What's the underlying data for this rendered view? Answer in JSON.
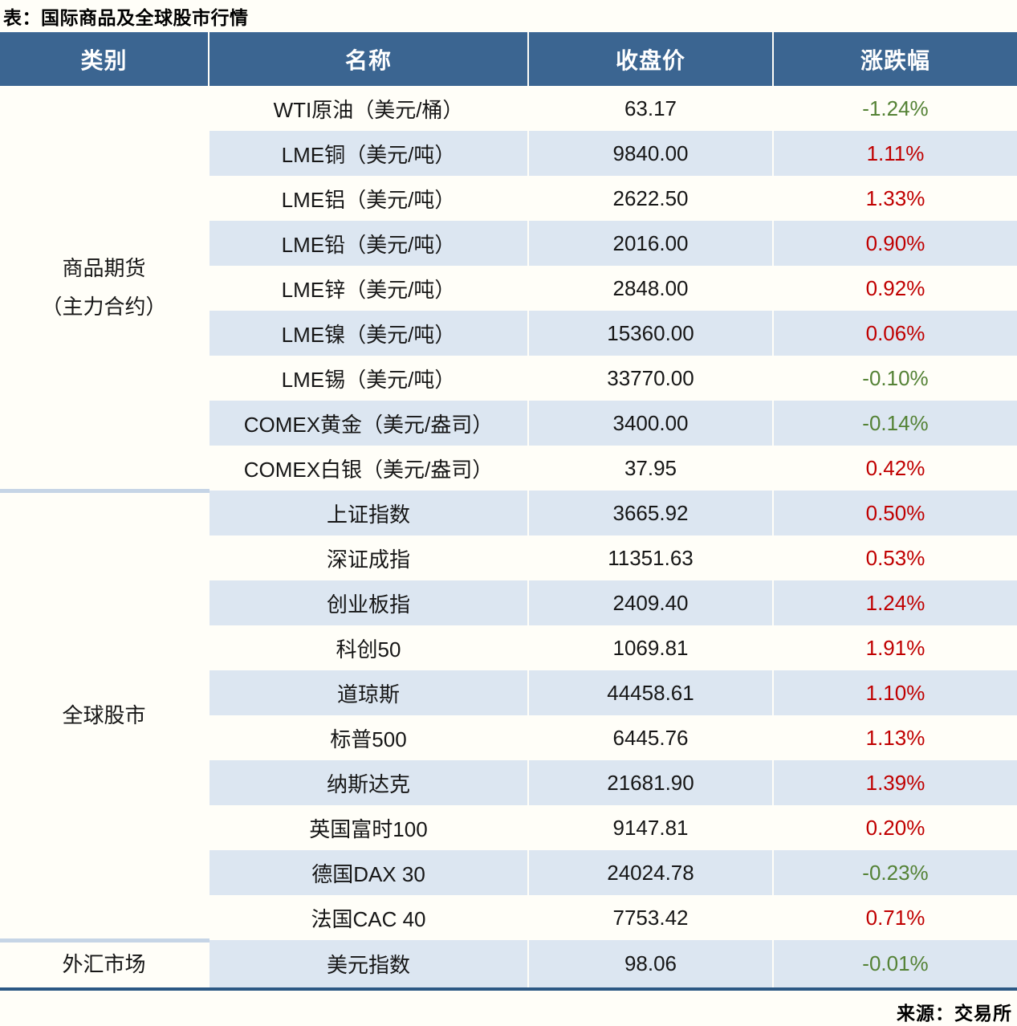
{
  "chart_data": {
    "type": "table",
    "title": "表：国际商品及全球股市行情",
    "source": "来源：交易所",
    "columns": [
      "类别",
      "名称",
      "收盘价",
      "涨跌幅"
    ],
    "categories": [
      {
        "label": "商品期货\n（主力合约）",
        "row_count": 9
      },
      {
        "label": "全球股市",
        "row_count": 10
      },
      {
        "label": "外汇市场",
        "row_count": 1
      }
    ],
    "rows": [
      {
        "name": "WTI原油（美元/桶）",
        "close": "63.17",
        "change": "-1.24%",
        "direction": "down"
      },
      {
        "name": "LME铜（美元/吨）",
        "close": "9840.00",
        "change": "1.11%",
        "direction": "up"
      },
      {
        "name": "LME铝（美元/吨）",
        "close": "2622.50",
        "change": "1.33%",
        "direction": "up"
      },
      {
        "name": "LME铅（美元/吨）",
        "close": "2016.00",
        "change": "0.90%",
        "direction": "up"
      },
      {
        "name": "LME锌（美元/吨）",
        "close": "2848.00",
        "change": "0.92%",
        "direction": "up"
      },
      {
        "name": "LME镍（美元/吨）",
        "close": "15360.00",
        "change": "0.06%",
        "direction": "up"
      },
      {
        "name": "LME锡（美元/吨）",
        "close": "33770.00",
        "change": "-0.10%",
        "direction": "down"
      },
      {
        "name": "COMEX黄金（美元/盎司）",
        "close": "3400.00",
        "change": "-0.14%",
        "direction": "down"
      },
      {
        "name": "COMEX白银（美元/盎司）",
        "close": "37.95",
        "change": "0.42%",
        "direction": "up"
      },
      {
        "name": "上证指数",
        "close": "3665.92",
        "change": "0.50%",
        "direction": "up"
      },
      {
        "name": "深证成指",
        "close": "11351.63",
        "change": "0.53%",
        "direction": "up"
      },
      {
        "name": "创业板指",
        "close": "2409.40",
        "change": "1.24%",
        "direction": "up"
      },
      {
        "name": "科创50",
        "close": "1069.81",
        "change": "1.91%",
        "direction": "up"
      },
      {
        "name": "道琼斯",
        "close": "44458.61",
        "change": "1.10%",
        "direction": "up"
      },
      {
        "name": "标普500",
        "close": "6445.76",
        "change": "1.13%",
        "direction": "up"
      },
      {
        "name": "纳斯达克",
        "close": "21681.90",
        "change": "1.39%",
        "direction": "up"
      },
      {
        "name": "英国富时100",
        "close": "9147.81",
        "change": "0.20%",
        "direction": "up"
      },
      {
        "name": "德国DAX 30",
        "close": "24024.78",
        "change": "-0.23%",
        "direction": "down"
      },
      {
        "name": "法国CAC 40",
        "close": "7753.42",
        "change": "0.71%",
        "direction": "up"
      },
      {
        "name": "美元指数",
        "close": "98.06",
        "change": "-0.01%",
        "direction": "down"
      }
    ],
    "colors": {
      "positive_change": "#c00000",
      "negative_change": "#548235",
      "header_background": "#3b6591",
      "stripe_background": "#dce6f1",
      "bottom_border": "#2c5884"
    },
    "layout_hints": {
      "grid": "striped-rows",
      "category_column_merged": true
    }
  }
}
